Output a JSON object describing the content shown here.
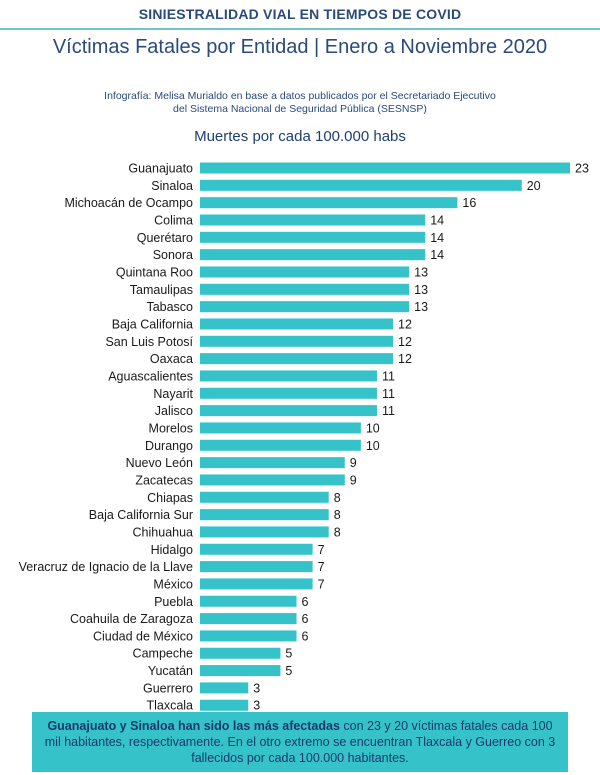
{
  "header": {
    "supertitle": "SINIESTRALIDAD VIAL EN TIEMPOS DE COVID",
    "title": "Víctimas Fatales por Entidad | Enero a Noviembre 2020",
    "credit_line1": "Infografía: Melisa Murialdo en base a datos publicados por el Secretariado Ejecutivo",
    "credit_line2": "del Sistema Nacional de Seguridad Pública (SESNSP)"
  },
  "footer": {
    "bold_text": "Guanajuato y Sinaloa han sido las más afectadas",
    "rest_text": " con 23 y 20 víctimas fatales cada 100 mil habitantes, respectivamente. En el otro extremo se encuentran Tlaxcala y Guerreo con 3 fallecidos por cada 100.000 habitantes."
  },
  "colors": {
    "bar": "#35c3c9",
    "title": "#2a4a7a",
    "label": "#1a1a1a"
  },
  "chart_data": {
    "type": "bar",
    "orientation": "horizontal",
    "title": "Muertes por cada 100.000 habs",
    "xlim": [
      0,
      23
    ],
    "categories": [
      "Guanajuato",
      "Sinaloa",
      "Michoacán de Ocampo",
      "Colima",
      "Querétaro",
      "Sonora",
      "Quintana Roo",
      "Tamaulipas",
      "Tabasco",
      "Baja California",
      "San Luis Potosí",
      "Oaxaca",
      "Aguascalientes",
      "Nayarit",
      "Jalisco",
      "Morelos",
      "Durango",
      "Nuevo León",
      "Zacatecas",
      "Chiapas",
      "Baja California Sur",
      "Chihuahua",
      "Hidalgo",
      "Veracruz de Ignacio de la Llave",
      "México",
      "Puebla",
      "Coahuila de Zaragoza",
      "Ciudad de México",
      "Campeche",
      "Yucatán",
      "Guerrero",
      "Tlaxcala"
    ],
    "values": [
      23,
      20,
      16,
      14,
      14,
      14,
      13,
      13,
      13,
      12,
      12,
      12,
      11,
      11,
      11,
      10,
      10,
      9,
      9,
      8,
      8,
      8,
      7,
      7,
      7,
      6,
      6,
      6,
      5,
      5,
      3,
      3
    ]
  }
}
